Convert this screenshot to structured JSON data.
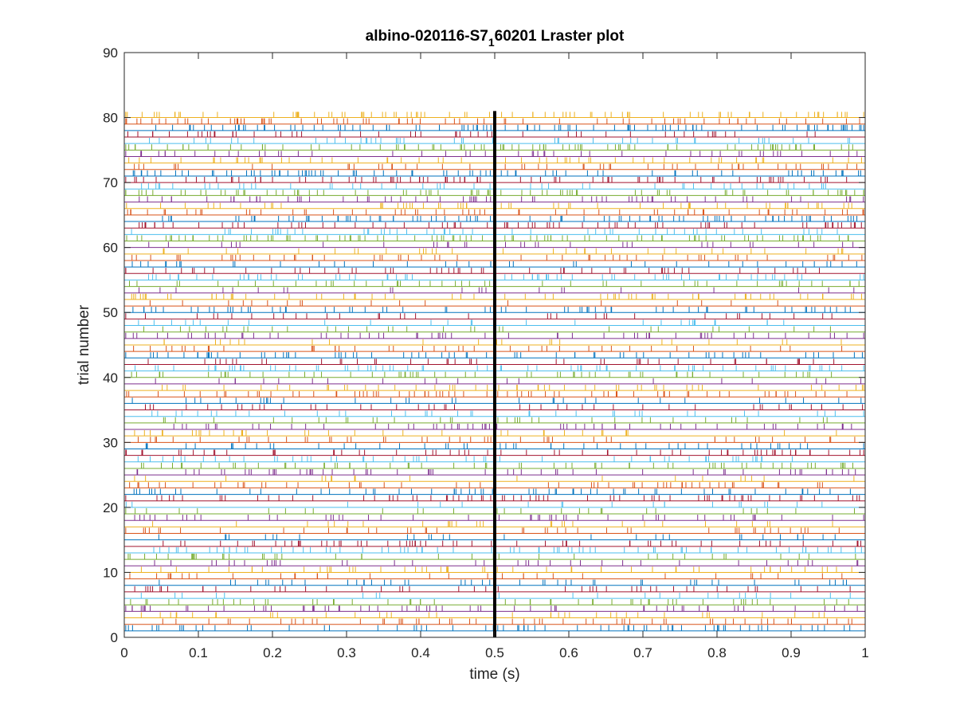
{
  "chart_data": {
    "type": "raster",
    "title_main": "albino-020116-S7",
    "title_sub": "1",
    "title_rest": "60201 Lraster plot",
    "xlabel": "time (s)",
    "ylabel": "trial number",
    "xlim": [
      0,
      1
    ],
    "ylim": [
      0,
      90
    ],
    "xticks": [
      "0",
      "0.1",
      "0.2",
      "0.3",
      "0.4",
      "0.5",
      "0.6",
      "0.7",
      "0.8",
      "0.9",
      "1"
    ],
    "yticks": [
      "0",
      "10",
      "20",
      "30",
      "40",
      "50",
      "60",
      "70",
      "80",
      "90"
    ],
    "n_trials": 80,
    "event_time": 0.5,
    "colors": [
      "#0072bd",
      "#d95319",
      "#edb120",
      "#7e2f8e",
      "#77ac30",
      "#4dbeee",
      "#a2142f"
    ],
    "event_line_color": "#000000",
    "background_color": "#ffffff"
  }
}
